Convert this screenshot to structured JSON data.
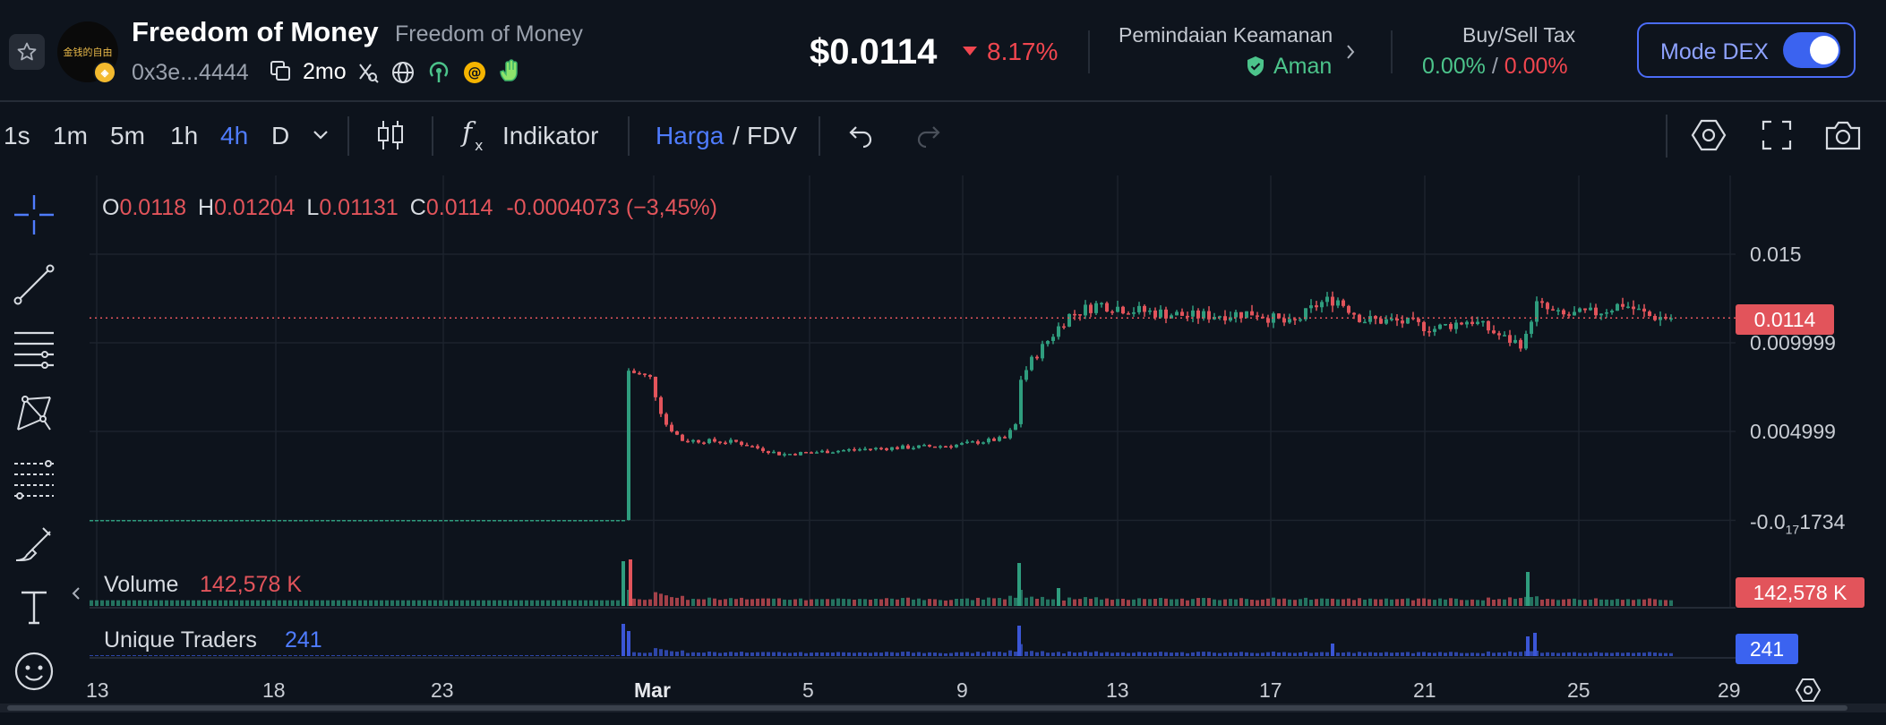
{
  "header": {
    "token_name": "Freedom of Money",
    "token_subtitle": "Freedom of Money",
    "avatar_text": "金钱的自由",
    "address": "0x3e...4444",
    "age": "2mo",
    "price": "$0.0114",
    "change": "8.17%",
    "security_title": "Pemindaian Keamanan",
    "security_status": "Aman",
    "tax_title": "Buy/Sell Tax",
    "buy_tax": "0.00%",
    "tax_separator": "/",
    "sell_tax": "0.00%",
    "dex_mode_label": "Mode DEX",
    "dex_mode_on": true
  },
  "toolbar": {
    "timeframes": [
      "1s",
      "1m",
      "5m",
      "1h",
      "4h",
      "D"
    ],
    "active_timeframe": "4h",
    "indicator_label": "Indikator",
    "price_label": "Harga",
    "price_separator": "/",
    "fdv_label": "FDV"
  },
  "ohlc": {
    "o_label": "O",
    "o": "0.0118",
    "h_label": "H",
    "h": "0.01204",
    "l_label": "L",
    "l": "0.01131",
    "c_label": "C",
    "c": "0.0114",
    "change": "-0.0004073 (−3,45%)"
  },
  "price_axis": {
    "labels": [
      "0.015",
      "0.009999",
      "0.004999"
    ],
    "bottom_label_prefix": "-0.0",
    "bottom_label_sub": "17",
    "bottom_label_suffix": "1734",
    "current_price_badge": "0.0114"
  },
  "panes": {
    "volume_label": "Volume",
    "volume_value": "142,578 K",
    "volume_badge": "142,578 K",
    "traders_label": "Unique Traders",
    "traders_value": "241",
    "traders_badge": "241"
  },
  "time_axis": {
    "labels": [
      "13",
      "18",
      "23",
      "Mar",
      "5",
      "9",
      "13",
      "17",
      "21",
      "25",
      "29"
    ]
  },
  "colors": {
    "up": "#2f9d7e",
    "down": "#e2545b",
    "accent": "#4f7cff",
    "background": "#0d131c",
    "aman": "#4cc48b",
    "badge_red": "#e2545b",
    "badge_blue": "#3b63f0"
  },
  "chart_data": {
    "type": "candlestick",
    "title": "",
    "timeframe": "4h",
    "price_ticks": [
      0.015,
      0.009999,
      0.004999
    ],
    "ylim": [
      -0.002,
      0.0185
    ],
    "time_ticks": [
      "13",
      "18",
      "23",
      "Mar",
      "5",
      "9",
      "13",
      "17",
      "21",
      "25",
      "29"
    ],
    "segments": [
      {
        "from": "Feb 13",
        "to": "Feb 28",
        "approx_price": 0.0
      },
      {
        "at": "Feb 28",
        "approx_price": 0.0085
      },
      {
        "from": "Mar 1",
        "to": "Mar 9",
        "approx_range": [
          0.0035,
          0.0047
        ]
      },
      {
        "at": "Mar 10",
        "approx_price": 0.0085
      },
      {
        "from": "Mar 11",
        "to": "Mar 23",
        "approx_range": [
          0.0095,
          0.0125
        ]
      },
      {
        "from": "Mar 24",
        "to": "Mar 27",
        "approx_range": [
          0.0112,
          0.0128
        ]
      }
    ],
    "last": {
      "open": 0.0118,
      "high": 0.01204,
      "low": 0.01131,
      "close": 0.0114
    },
    "current_price": 0.0114,
    "volume": "142,578 K",
    "unique_traders": 241
  }
}
